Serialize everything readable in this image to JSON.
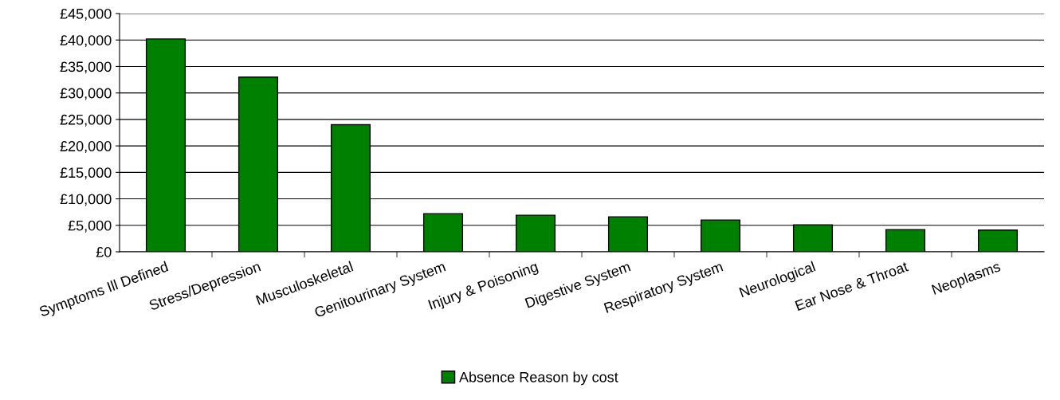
{
  "chart_data": {
    "type": "bar",
    "categories": [
      "Symptoms Ill Defined",
      "Stress/Depression",
      "Musculoskeletal",
      "Genitourinary System",
      "Injury & Poisoning",
      "Digestive System",
      "Respiratory System",
      "Neurological",
      "Ear Nose & Throat",
      "Neoplasms"
    ],
    "series": [
      {
        "name": "Absence Reason by cost",
        "color": "#008000",
        "values": [
          40200,
          33000,
          24000,
          7200,
          6900,
          6600,
          6000,
          5100,
          4200,
          4100
        ]
      }
    ],
    "ylim": [
      0,
      45000
    ],
    "yticks": [
      {
        "value": 0,
        "label": "£0"
      },
      {
        "value": 5000,
        "label": "£5,000"
      },
      {
        "value": 10000,
        "label": "£10,000"
      },
      {
        "value": 15000,
        "label": "£15,000"
      },
      {
        "value": 20000,
        "label": "£20,000"
      },
      {
        "value": 25000,
        "label": "£25,000"
      },
      {
        "value": 30000,
        "label": "£30,000"
      },
      {
        "value": 35000,
        "label": "£35,000"
      },
      {
        "value": 40000,
        "label": "£40,000"
      },
      {
        "value": 45000,
        "label": "£45,000"
      }
    ],
    "grid": "y",
    "legend": "bottom"
  }
}
